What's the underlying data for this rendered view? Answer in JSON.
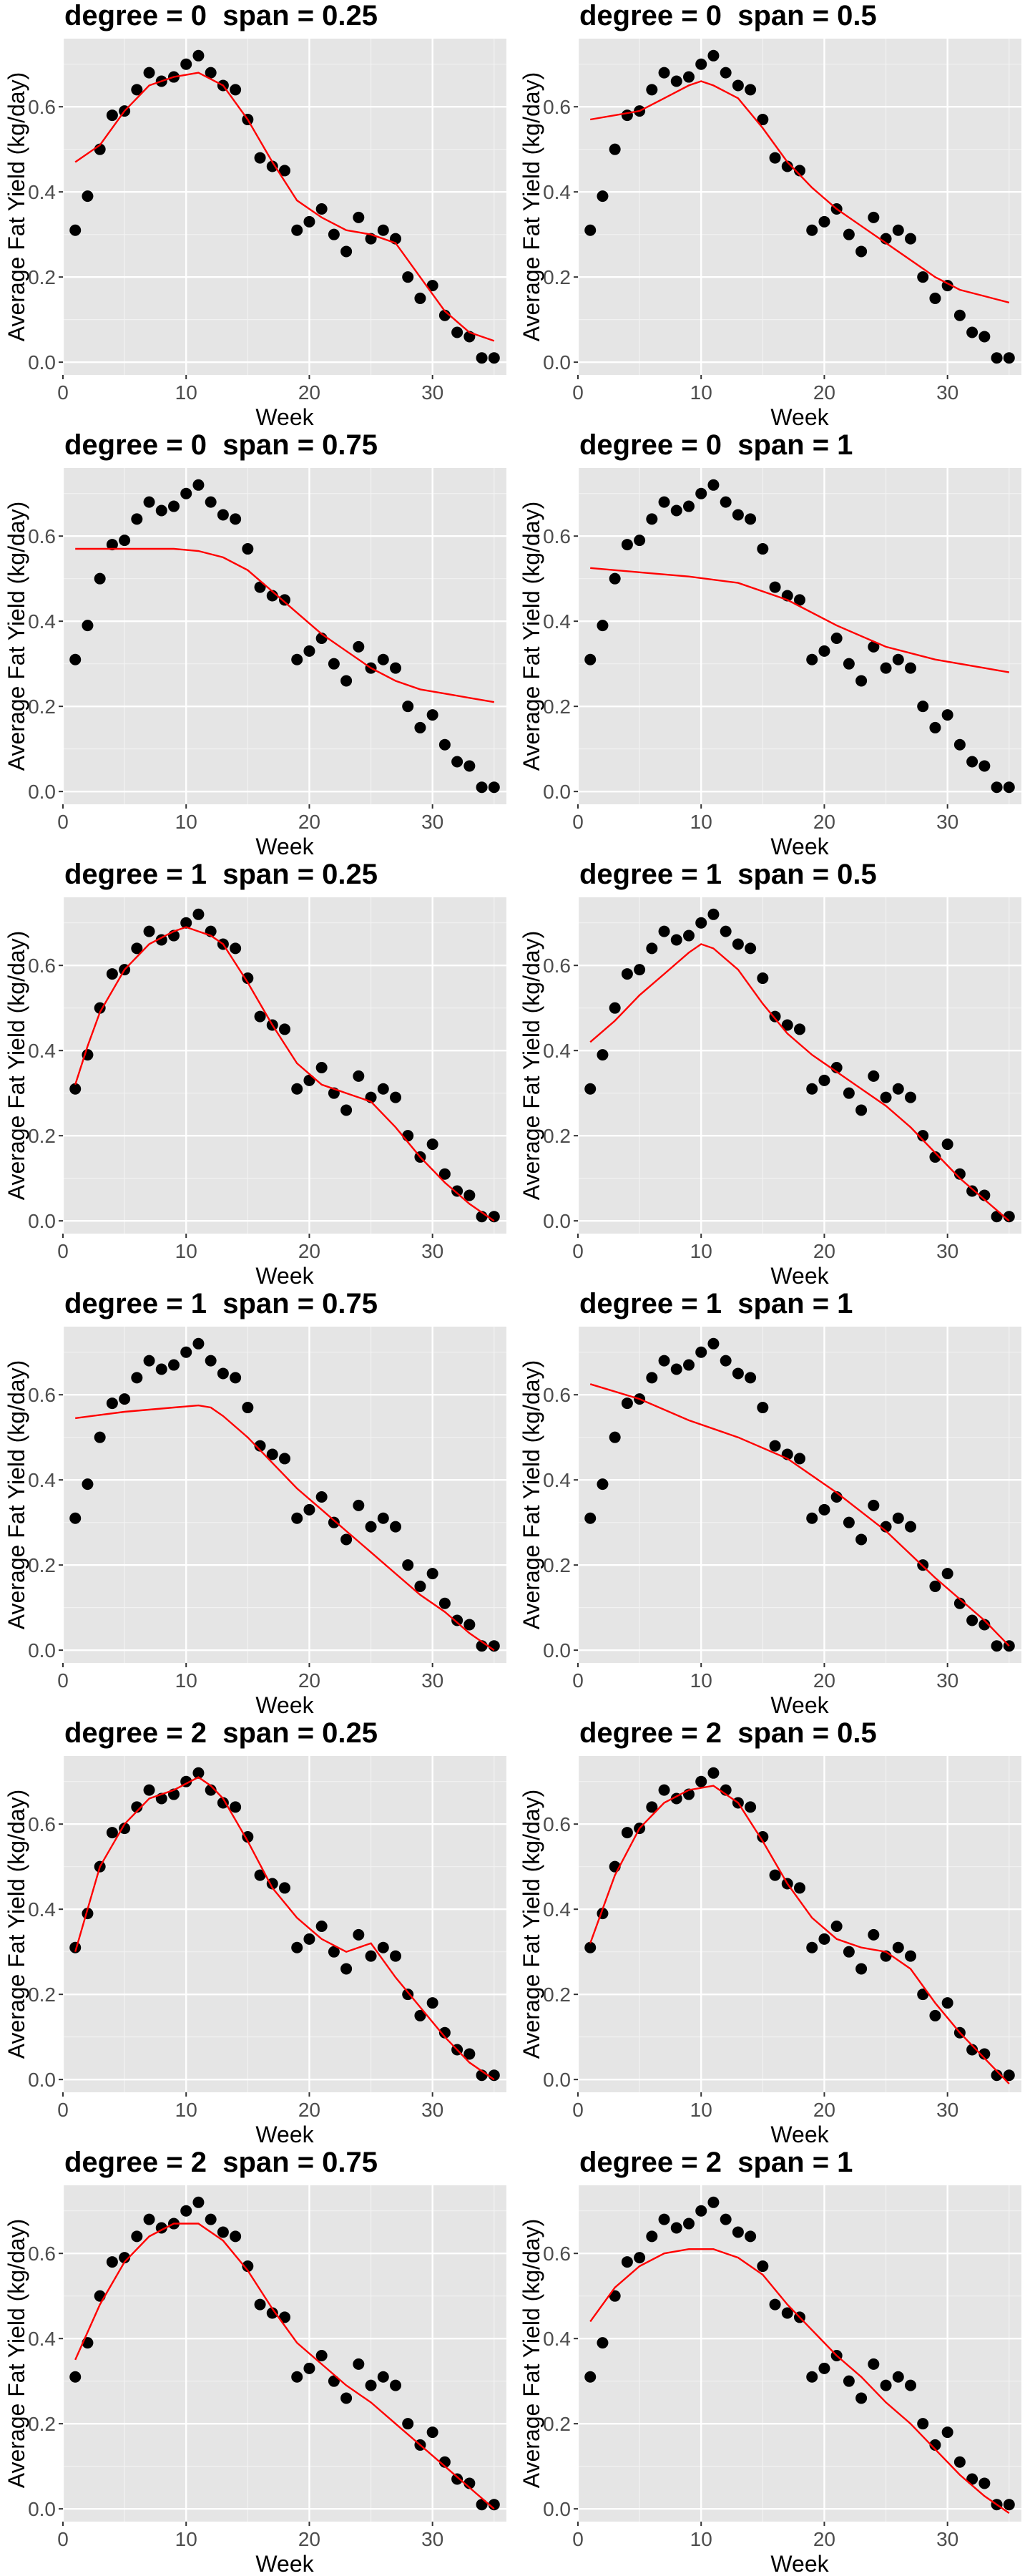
{
  "chart_data": {
    "type": "scatter",
    "shared": {
      "xlabel": "Week",
      "ylabel": "Average Fat Yield (kg/day)",
      "xlim": [
        0,
        36
      ],
      "ylim": [
        -0.03,
        0.76
      ],
      "xticks": [
        0,
        10,
        20,
        30
      ],
      "yticks": [
        0.0,
        0.2,
        0.4,
        0.6
      ],
      "ytick_labels": [
        "0.0",
        "0.2",
        "0.4",
        "0.6"
      ],
      "grid": true,
      "background": "#e5e5e5",
      "point_color": "#000000",
      "line_color": "#ff0000",
      "points": {
        "x": [
          1,
          2,
          3,
          4,
          5,
          6,
          7,
          8,
          9,
          10,
          11,
          12,
          13,
          14,
          15,
          16,
          17,
          18,
          19,
          20,
          21,
          22,
          23,
          24,
          25,
          26,
          27,
          28,
          29,
          30,
          31,
          32,
          33,
          34,
          35
        ],
        "y": [
          0.31,
          0.39,
          0.5,
          0.58,
          0.59,
          0.64,
          0.68,
          0.66,
          0.67,
          0.7,
          0.72,
          0.68,
          0.65,
          0.64,
          0.57,
          0.48,
          0.46,
          0.45,
          0.31,
          0.33,
          0.36,
          0.3,
          0.26,
          0.34,
          0.29,
          0.31,
          0.29,
          0.2,
          0.15,
          0.18,
          0.11,
          0.07,
          0.06,
          0.01,
          0.01
        ]
      }
    },
    "panels": [
      {
        "title": "degree = 0  span = 0.25",
        "fit_x": [
          1,
          3,
          5,
          7,
          9,
          11,
          13,
          15,
          17,
          19,
          21,
          23,
          25,
          27,
          29,
          31,
          33,
          35
        ],
        "fit_y": [
          0.47,
          0.51,
          0.59,
          0.65,
          0.67,
          0.68,
          0.65,
          0.57,
          0.47,
          0.38,
          0.34,
          0.31,
          0.3,
          0.28,
          0.2,
          0.12,
          0.07,
          0.05
        ]
      },
      {
        "title": "degree = 0  span = 0.5",
        "fit_x": [
          1,
          3,
          5,
          7,
          9,
          10,
          11,
          13,
          15,
          17,
          19,
          21,
          23,
          25,
          27,
          29,
          31,
          33,
          35
        ],
        "fit_y": [
          0.57,
          0.58,
          0.59,
          0.62,
          0.65,
          0.66,
          0.65,
          0.62,
          0.55,
          0.47,
          0.41,
          0.36,
          0.32,
          0.28,
          0.24,
          0.2,
          0.17,
          0.155,
          0.14
        ]
      },
      {
        "title": "degree = 0  span = 0.75",
        "fit_x": [
          1,
          5,
          9,
          11,
          13,
          15,
          17,
          19,
          21,
          23,
          25,
          27,
          29,
          31,
          33,
          35
        ],
        "fit_y": [
          0.57,
          0.57,
          0.57,
          0.565,
          0.55,
          0.52,
          0.47,
          0.42,
          0.37,
          0.33,
          0.29,
          0.26,
          0.24,
          0.23,
          0.22,
          0.21
        ]
      },
      {
        "title": "degree = 0  span = 1",
        "fit_x": [
          1,
          5,
          9,
          13,
          17,
          21,
          25,
          29,
          33,
          35
        ],
        "fit_y": [
          0.525,
          0.515,
          0.505,
          0.49,
          0.45,
          0.39,
          0.34,
          0.31,
          0.29,
          0.28
        ]
      },
      {
        "title": "degree = 1  span = 0.25",
        "fit_x": [
          1,
          2,
          3,
          5,
          7,
          9,
          10,
          11,
          12,
          13,
          15,
          17,
          19,
          21,
          23,
          25,
          27,
          29,
          31,
          33,
          35
        ],
        "fit_y": [
          0.32,
          0.41,
          0.49,
          0.59,
          0.65,
          0.68,
          0.69,
          0.68,
          0.67,
          0.65,
          0.56,
          0.46,
          0.37,
          0.32,
          0.3,
          0.28,
          0.22,
          0.15,
          0.09,
          0.04,
          0.0
        ]
      },
      {
        "title": "degree = 1  span = 0.5",
        "fit_x": [
          1,
          3,
          5,
          7,
          9,
          10,
          11,
          13,
          15,
          17,
          19,
          21,
          23,
          25,
          27,
          29,
          31,
          33,
          35
        ],
        "fit_y": [
          0.42,
          0.47,
          0.53,
          0.58,
          0.63,
          0.65,
          0.64,
          0.59,
          0.51,
          0.44,
          0.39,
          0.35,
          0.31,
          0.27,
          0.22,
          0.16,
          0.1,
          0.05,
          0.0
        ]
      },
      {
        "title": "degree = 1  span = 0.75",
        "fit_x": [
          1,
          5,
          9,
          11,
          12,
          13,
          15,
          17,
          19,
          21,
          23,
          25,
          27,
          29,
          31,
          33,
          35
        ],
        "fit_y": [
          0.545,
          0.56,
          0.57,
          0.575,
          0.57,
          0.55,
          0.5,
          0.44,
          0.38,
          0.33,
          0.28,
          0.23,
          0.18,
          0.13,
          0.09,
          0.04,
          0.0
        ]
      },
      {
        "title": "degree = 1  span = 1",
        "fit_x": [
          1,
          5,
          9,
          13,
          17,
          21,
          25,
          29,
          33,
          35
        ],
        "fit_y": [
          0.625,
          0.59,
          0.54,
          0.5,
          0.45,
          0.37,
          0.28,
          0.17,
          0.07,
          0.01
        ]
      },
      {
        "title": "degree = 2  span = 0.25",
        "fit_x": [
          1,
          2,
          3,
          5,
          7,
          9,
          11,
          12,
          13,
          15,
          17,
          19,
          21,
          23,
          24,
          25,
          27,
          29,
          31,
          33,
          35
        ],
        "fit_y": [
          0.3,
          0.4,
          0.5,
          0.6,
          0.66,
          0.68,
          0.71,
          0.69,
          0.66,
          0.56,
          0.45,
          0.38,
          0.33,
          0.3,
          0.31,
          0.32,
          0.24,
          0.17,
          0.1,
          0.04,
          0.0
        ]
      },
      {
        "title": "degree = 2  span = 0.5",
        "fit_x": [
          1,
          2,
          3,
          5,
          7,
          9,
          11,
          13,
          15,
          17,
          19,
          21,
          23,
          25,
          27,
          29,
          31,
          33,
          35
        ],
        "fit_y": [
          0.32,
          0.4,
          0.48,
          0.59,
          0.65,
          0.68,
          0.69,
          0.65,
          0.56,
          0.46,
          0.38,
          0.33,
          0.31,
          0.3,
          0.26,
          0.18,
          0.11,
          0.05,
          -0.01
        ]
      },
      {
        "title": "degree = 2  span = 0.75",
        "fit_x": [
          1,
          3,
          5,
          7,
          9,
          11,
          13,
          15,
          17,
          19,
          21,
          23,
          25,
          27,
          29,
          31,
          33,
          35
        ],
        "fit_y": [
          0.35,
          0.48,
          0.58,
          0.64,
          0.67,
          0.67,
          0.63,
          0.56,
          0.47,
          0.39,
          0.34,
          0.29,
          0.25,
          0.2,
          0.15,
          0.1,
          0.05,
          0.0
        ]
      },
      {
        "title": "degree = 2  span = 1",
        "fit_x": [
          1,
          3,
          5,
          7,
          9,
          11,
          13,
          15,
          17,
          19,
          21,
          23,
          25,
          27,
          29,
          31,
          33,
          35
        ],
        "fit_y": [
          0.44,
          0.52,
          0.57,
          0.6,
          0.61,
          0.61,
          0.59,
          0.55,
          0.48,
          0.42,
          0.36,
          0.31,
          0.25,
          0.2,
          0.14,
          0.08,
          0.03,
          -0.01
        ]
      }
    ]
  }
}
